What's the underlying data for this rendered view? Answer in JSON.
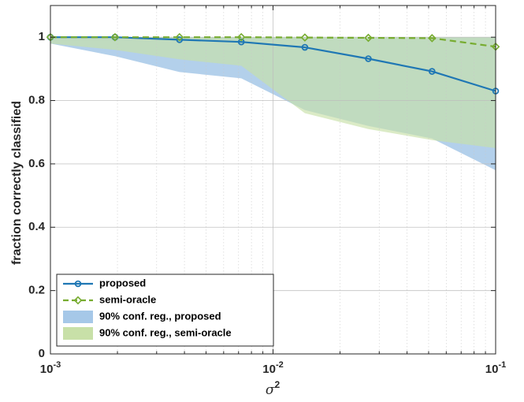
{
  "chart_data": {
    "type": "line",
    "xscale": "log",
    "xlim": [
      0.001,
      0.1
    ],
    "ylim": [
      0,
      1.1
    ],
    "grid": true,
    "legend_location": "bottom-left",
    "xlabel": "σ",
    "xlabel_superscript": "2",
    "ylabel": "fraction correctly classified",
    "x_ticks": [
      {
        "base": "10",
        "exp": "-3"
      },
      {
        "base": "10",
        "exp": "-2"
      },
      {
        "base": "10",
        "exp": "-1"
      }
    ],
    "y_ticks": [
      "0",
      "0.2",
      "0.4",
      "0.6",
      "0.8",
      "1"
    ],
    "x": [
      0.001,
      0.00195,
      0.0038,
      0.0072,
      0.0139,
      0.0268,
      0.0518,
      0.1
    ],
    "series": [
      {
        "name": "proposed",
        "color": "#1f77b4",
        "style": "solid",
        "marker": "circle",
        "values": [
          1.0,
          1.0,
          0.992,
          0.985,
          0.968,
          0.932,
          0.892,
          0.83
        ]
      },
      {
        "name": "semi-oracle",
        "color": "#77ac30",
        "style": "dashed",
        "marker": "diamond",
        "values": [
          1.0,
          1.0,
          1.0,
          1.0,
          0.999,
          0.998,
          0.997,
          0.97
        ]
      }
    ],
    "bands": [
      {
        "name": "90% conf. reg., proposed",
        "color": "#a6c8e8",
        "upper": [
          1.0,
          1.0,
          1.0,
          1.0,
          1.0,
          1.0,
          1.0,
          1.0
        ],
        "lower": [
          0.98,
          0.94,
          0.89,
          0.87,
          0.77,
          0.72,
          0.68,
          0.58
        ]
      },
      {
        "name": "90% conf. reg., semi-oracle",
        "color": "#c8e0a8",
        "upper": [
          1.0,
          1.0,
          1.0,
          1.0,
          1.0,
          1.0,
          1.0,
          1.0
        ],
        "lower": [
          0.98,
          0.96,
          0.93,
          0.91,
          0.76,
          0.71,
          0.675,
          0.65
        ]
      }
    ]
  }
}
